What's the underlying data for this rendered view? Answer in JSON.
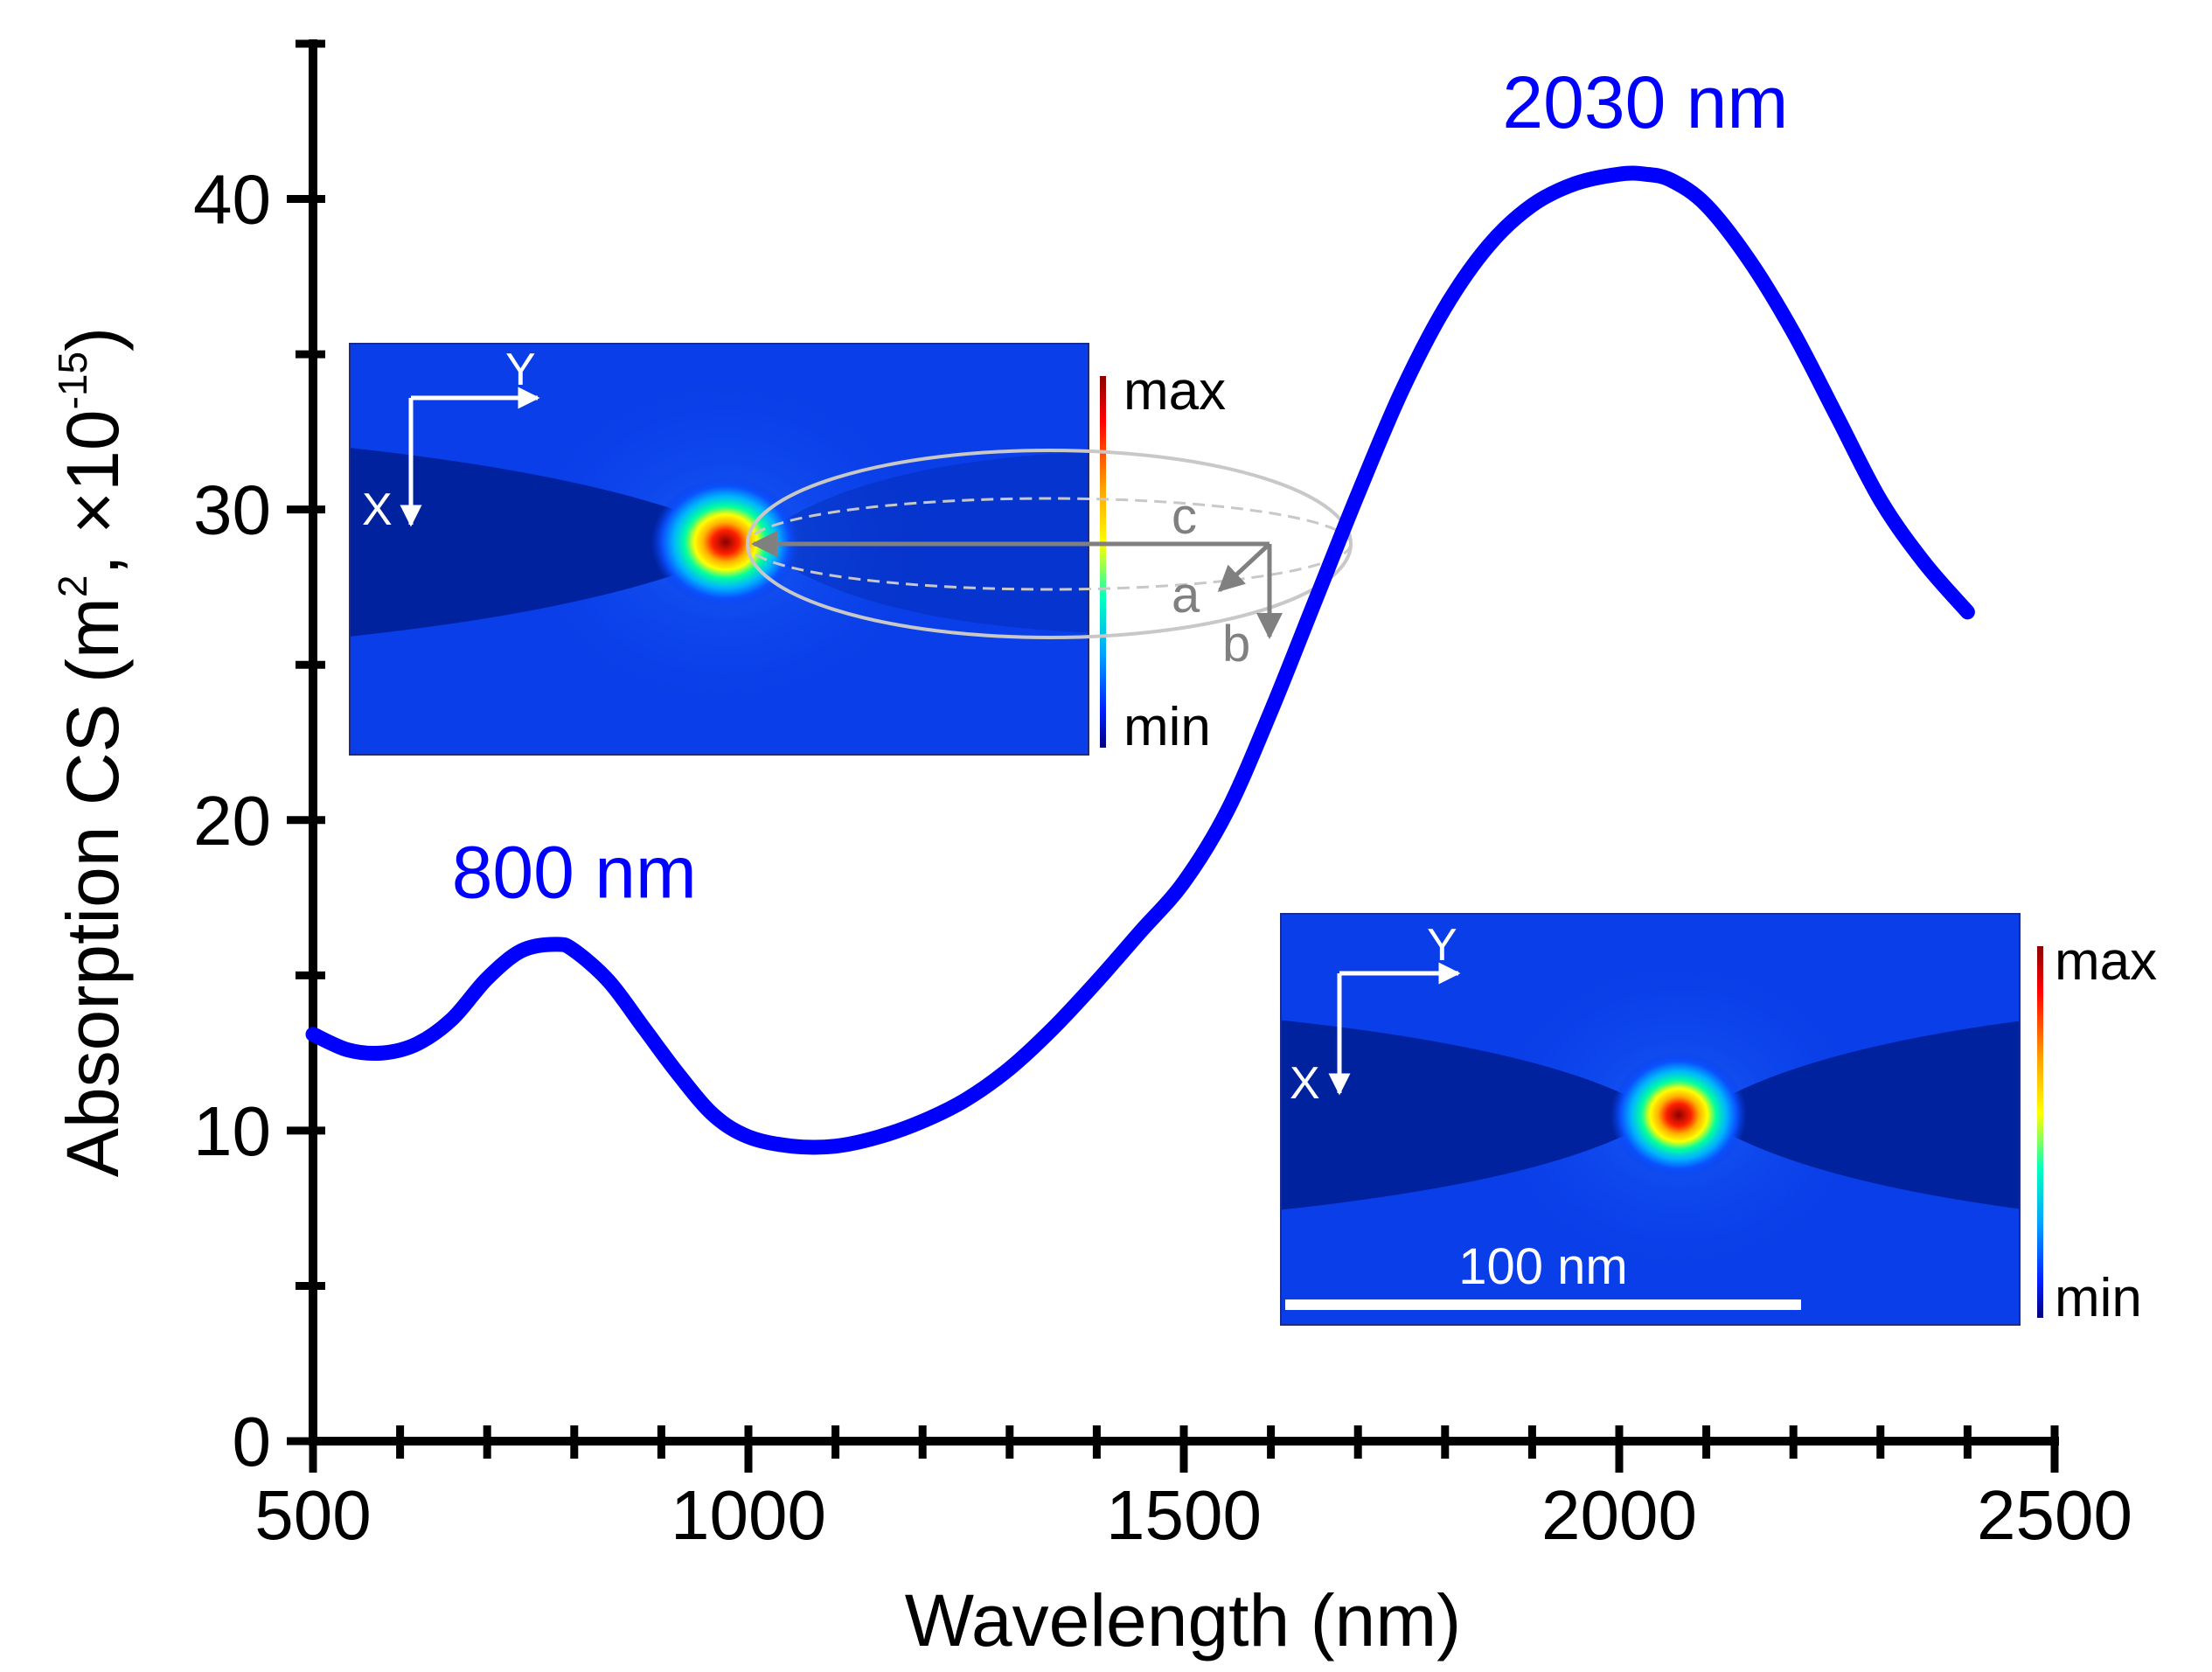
{
  "chart_data": {
    "type": "line",
    "title": "",
    "xlabel": "Wavelength (nm)",
    "ylabel": "Absorption CS (m², ×10⁻¹⁵)",
    "ylabel_parts": {
      "main": "Absorption CS (m",
      "sup1": "2",
      "mid": ", ×10",
      "sup2": "-15",
      "end": ")"
    },
    "xlim": [
      500,
      2500
    ],
    "ylim": [
      0,
      45
    ],
    "xticks": [
      500,
      1000,
      1500,
      2000,
      2500
    ],
    "yticks": [
      0,
      10,
      20,
      30,
      40
    ],
    "x_minor_step": 100,
    "y_minor_step": 5,
    "grid": false,
    "series": [
      {
        "name": "Absorption CS",
        "color": "#0000ff",
        "x": [
          500,
          540,
          580,
          620,
          660,
          700,
          740,
          780,
          800,
          840,
          880,
          920,
          960,
          1000,
          1050,
          1100,
          1150,
          1200,
          1250,
          1300,
          1350,
          1400,
          1450,
          1500,
          1550,
          1600,
          1650,
          1700,
          1750,
          1800,
          1850,
          1900,
          1950,
          2000,
          2030,
          2060,
          2100,
          2150,
          2200,
          2250,
          2300,
          2350,
          2400
        ],
        "y": [
          13.1,
          12.6,
          12.5,
          12.8,
          13.6,
          14.9,
          15.8,
          16.0,
          15.8,
          14.8,
          13.3,
          11.8,
          10.5,
          9.8,
          9.5,
          9.5,
          9.8,
          10.3,
          11.0,
          12.0,
          13.3,
          14.8,
          16.4,
          18.0,
          20.3,
          23.5,
          27.0,
          30.5,
          33.8,
          36.5,
          38.5,
          39.8,
          40.5,
          40.8,
          40.8,
          40.6,
          39.8,
          38.0,
          35.7,
          33.0,
          30.3,
          28.3,
          26.7
        ]
      }
    ],
    "annotations": [
      {
        "text": "800 nm",
        "x": 800,
        "y": 17.5,
        "color": "#0000ff"
      },
      {
        "text": "2030 nm",
        "x": 2030,
        "y": 42.3,
        "color": "#0000ff"
      }
    ]
  },
  "insets": {
    "top": {
      "axis_x": "X",
      "axis_y": "Y",
      "scale_max": "max",
      "scale_min": "min",
      "dim_a": "a",
      "dim_b": "b",
      "dim_c": "c"
    },
    "bottom": {
      "axis_x": "X",
      "axis_y": "Y",
      "scale_max": "max",
      "scale_min": "min",
      "scale_bar": "100 nm"
    }
  }
}
